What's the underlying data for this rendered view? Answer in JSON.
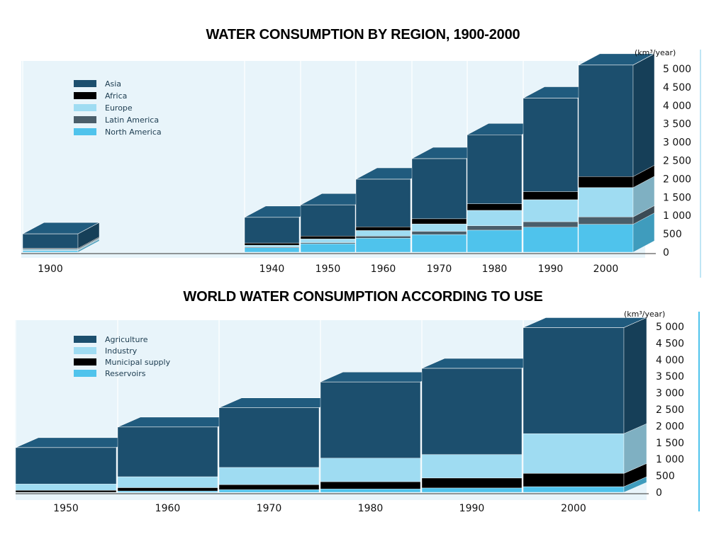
{
  "chart_data": [
    {
      "type": "bar",
      "stacked": true,
      "title": "WATER CONSUMPTION BY REGION, 1900-2000",
      "unit_label": "(km³/year)",
      "categories": [
        "1900",
        "1940",
        "1950",
        "1960",
        "1970",
        "1980",
        "1990",
        "2000"
      ],
      "y_ticks": [
        "5 000",
        "4 500",
        "4 000",
        "3 500",
        "3 000",
        "2 500",
        "2 000",
        "1 500",
        "1 000",
        "500",
        "0"
      ],
      "ylim": [
        0,
        5000
      ],
      "legend_position": "top-left",
      "series": [
        {
          "name": "North America",
          "color": "#4fc3ec",
          "values": [
            40,
            120,
            230,
            380,
            480,
            600,
            680,
            760
          ]
        },
        {
          "name": "Latin America",
          "color": "#4a5e6a",
          "values": [
            15,
            20,
            30,
            60,
            90,
            120,
            150,
            200
          ]
        },
        {
          "name": "Europe",
          "color": "#9fdcf2",
          "values": [
            30,
            50,
            100,
            150,
            200,
            420,
            600,
            800
          ]
        },
        {
          "name": "Africa",
          "color": "#000000",
          "values": [
            20,
            60,
            80,
            100,
            140,
            180,
            220,
            300
          ]
        },
        {
          "name": "Asia",
          "color": "#1c4f6e",
          "values": [
            395,
            700,
            850,
            1300,
            1640,
            1880,
            2550,
            3040
          ]
        }
      ]
    },
    {
      "type": "bar",
      "stacked": true,
      "title": "WORLD WATER CONSUMPTION ACCORDING TO USE",
      "unit_label": "(km³/year)",
      "categories": [
        "1950",
        "1960",
        "1970",
        "1980",
        "1990",
        "2000"
      ],
      "y_ticks": [
        "5 000",
        "4 500",
        "4 000",
        "3 500",
        "3 000",
        "2 500",
        "2 000",
        "1 500",
        "1 000",
        "500",
        "0"
      ],
      "ylim": [
        0,
        5000
      ],
      "legend_position": "top-left",
      "series": [
        {
          "name": "Reservoirs",
          "color": "#4fc3ec",
          "values": [
            0,
            40,
            80,
            100,
            130,
            170
          ]
        },
        {
          "name": "Municipal supply",
          "color": "#000000",
          "values": [
            60,
            100,
            150,
            220,
            300,
            400
          ]
        },
        {
          "name": "Industry",
          "color": "#9fdcf2",
          "values": [
            190,
            330,
            520,
            710,
            710,
            1200
          ]
        },
        {
          "name": "Agriculture",
          "color": "#1c4f6e",
          "values": [
            1100,
            1500,
            1800,
            2300,
            2600,
            3200
          ]
        }
      ]
    }
  ]
}
